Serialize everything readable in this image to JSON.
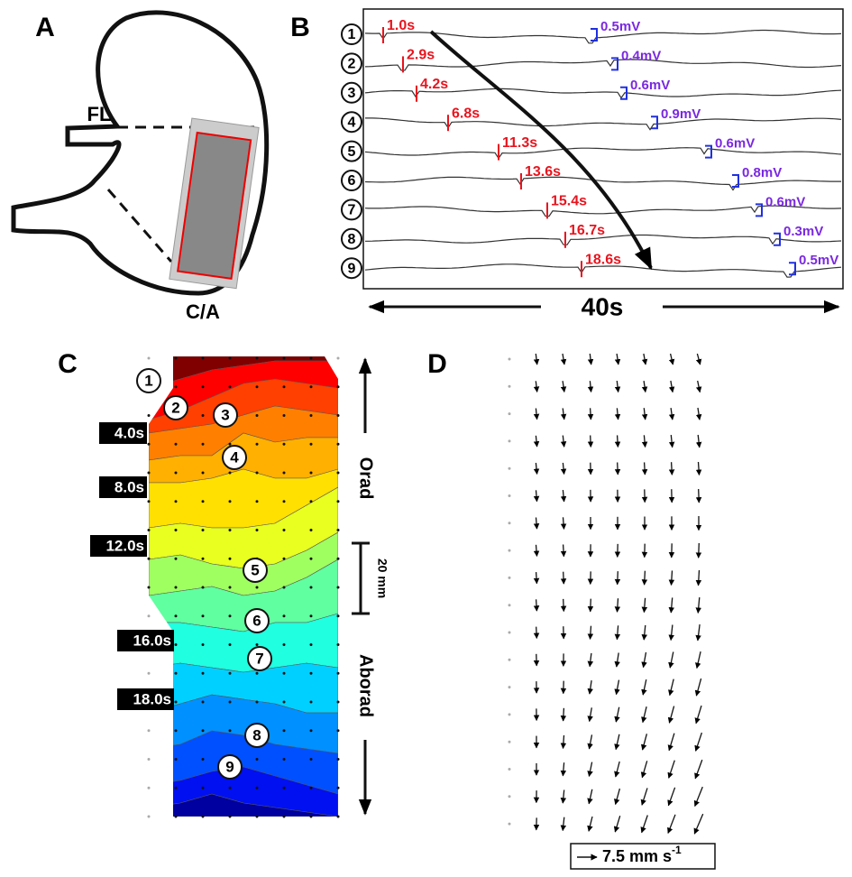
{
  "panels": {
    "a": {
      "label": "A",
      "fl": "FL",
      "ca": "C/A"
    },
    "b": {
      "label": "B",
      "scale": "40s",
      "traces": [
        {
          "number": "1",
          "time": "1.0s",
          "amplitude": "0.5mV"
        },
        {
          "number": "2",
          "time": "2.9s",
          "amplitude": "0.4mV"
        },
        {
          "number": "3",
          "time": "4.2s",
          "amplitude": "0.6mV"
        },
        {
          "number": "4",
          "time": "6.8s",
          "amplitude": "0.9mV"
        },
        {
          "number": "5",
          "time": "11.3s",
          "amplitude": "0.6mV"
        },
        {
          "number": "6",
          "time": "13.6s",
          "amplitude": "0.8mV"
        },
        {
          "number": "7",
          "time": "15.4s",
          "amplitude": "0.6mV"
        },
        {
          "number": "8",
          "time": "16.7s",
          "amplitude": "0.3mV"
        },
        {
          "number": "9",
          "time": "18.6s",
          "amplitude": "0.5mV"
        }
      ]
    },
    "c": {
      "label": "C",
      "electrodes": [
        "1",
        "2",
        "3",
        "4",
        "5",
        "6",
        "7",
        "8",
        "9"
      ],
      "isochrones": [
        "4.0s",
        "8.0s",
        "12.0s",
        "16.0s",
        "18.0s"
      ],
      "orad": "Orad",
      "aborad": "Aborad",
      "scale": "20 mm"
    },
    "d": {
      "label": "D",
      "scale": "7.5 mm s",
      "scale_exp": "-1"
    }
  }
}
